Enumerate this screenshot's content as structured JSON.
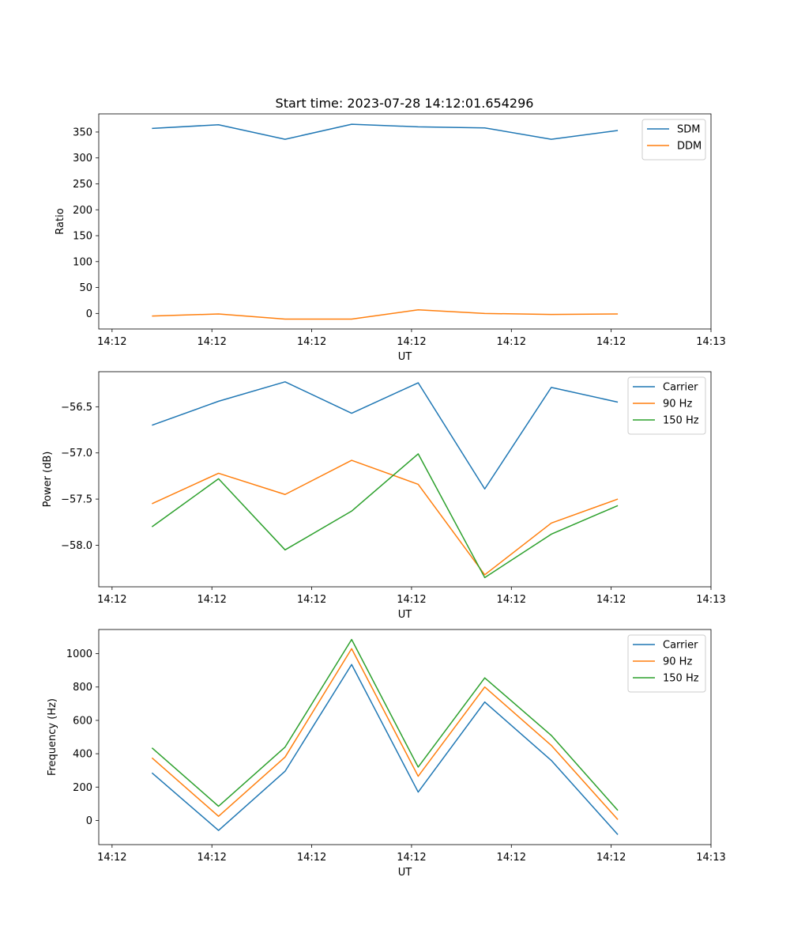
{
  "title": "Start time: 2023-07-28 14:12:01.654296",
  "colors": {
    "blue": "#1f77b4",
    "orange": "#ff7f0e",
    "green": "#2ca02c"
  },
  "chart_data": [
    {
      "type": "line",
      "title": "Start time: 2023-07-28 14:12:01.654296",
      "xlabel": "UT",
      "ylabel": "Ratio",
      "x": [
        1,
        2,
        3,
        4,
        5,
        6,
        7,
        8
      ],
      "xlim": [
        0.2,
        9.4
      ],
      "xticks": [
        0.4,
        1.9,
        3.4,
        4.9,
        6.4,
        7.9,
        9.4
      ],
      "xtick_labels": [
        "14:12",
        "14:12",
        "14:12",
        "14:12",
        "14:12",
        "14:12",
        "14:13"
      ],
      "ylim": [
        -30,
        385
      ],
      "yticks": [
        0,
        50,
        100,
        150,
        200,
        250,
        300,
        350
      ],
      "ytick_labels": [
        "0",
        "50",
        "100",
        "150",
        "200",
        "250",
        "300",
        "350"
      ],
      "legend_position": "top-right",
      "series": [
        {
          "name": "SDM",
          "color": "#1f77b4",
          "values": [
            357,
            364,
            336,
            365,
            360,
            358,
            336,
            353
          ]
        },
        {
          "name": "DDM",
          "color": "#ff7f0e",
          "values": [
            -5,
            -1,
            -11,
            -11,
            7,
            0,
            -2,
            -1
          ]
        }
      ]
    },
    {
      "type": "line",
      "title": "",
      "xlabel": "UT",
      "ylabel": "Power (dB)",
      "x": [
        1,
        2,
        3,
        4,
        5,
        6,
        7,
        8
      ],
      "xlim": [
        0.2,
        9.4
      ],
      "xticks": [
        0.4,
        1.9,
        3.4,
        4.9,
        6.4,
        7.9,
        9.4
      ],
      "xtick_labels": [
        "14:12",
        "14:12",
        "14:12",
        "14:12",
        "14:12",
        "14:12",
        "14:13"
      ],
      "ylim": [
        -58.45,
        -56.12
      ],
      "yticks": [
        -58.0,
        -57.5,
        -57.0,
        -56.5
      ],
      "ytick_labels": [
        "−58.0",
        "−57.5",
        "−57.0",
        "−56.5"
      ],
      "legend_position": "top-right",
      "series": [
        {
          "name": "Carrier",
          "color": "#1f77b4",
          "values": [
            -56.7,
            -56.44,
            -56.23,
            -56.57,
            -56.24,
            -57.39,
            -56.29,
            -56.45
          ]
        },
        {
          "name": "90 Hz",
          "color": "#ff7f0e",
          "values": [
            -57.55,
            -57.22,
            -57.45,
            -57.08,
            -57.34,
            -58.32,
            -57.76,
            -57.5
          ]
        },
        {
          "name": "150 Hz",
          "color": "#2ca02c",
          "values": [
            -57.8,
            -57.28,
            -58.05,
            -57.63,
            -57.01,
            -58.35,
            -57.88,
            -57.57
          ]
        }
      ]
    },
    {
      "type": "line",
      "title": "",
      "xlabel": "UT",
      "ylabel": "Frequency (Hz)",
      "x": [
        1,
        2,
        3,
        4,
        5,
        6,
        7,
        8
      ],
      "xlim": [
        0.2,
        9.4
      ],
      "xticks": [
        0.4,
        1.9,
        3.4,
        4.9,
        6.4,
        7.9,
        9.4
      ],
      "xtick_labels": [
        "14:12",
        "14:12",
        "14:12",
        "14:12",
        "14:12",
        "14:12",
        "14:13"
      ],
      "ylim": [
        -145,
        1145
      ],
      "yticks": [
        0,
        200,
        400,
        600,
        800,
        1000
      ],
      "ytick_labels": [
        "0",
        "200",
        "400",
        "600",
        "800",
        "1000"
      ],
      "legend_position": "top-right",
      "series": [
        {
          "name": "Carrier",
          "color": "#1f77b4",
          "values": [
            285,
            -60,
            295,
            935,
            170,
            710,
            360,
            -85
          ]
        },
        {
          "name": "90 Hz",
          "color": "#ff7f0e",
          "values": [
            375,
            25,
            380,
            1030,
            265,
            800,
            450,
            5
          ]
        },
        {
          "name": "150 Hz",
          "color": "#2ca02c",
          "values": [
            435,
            85,
            440,
            1085,
            320,
            855,
            510,
            60
          ]
        }
      ]
    }
  ]
}
